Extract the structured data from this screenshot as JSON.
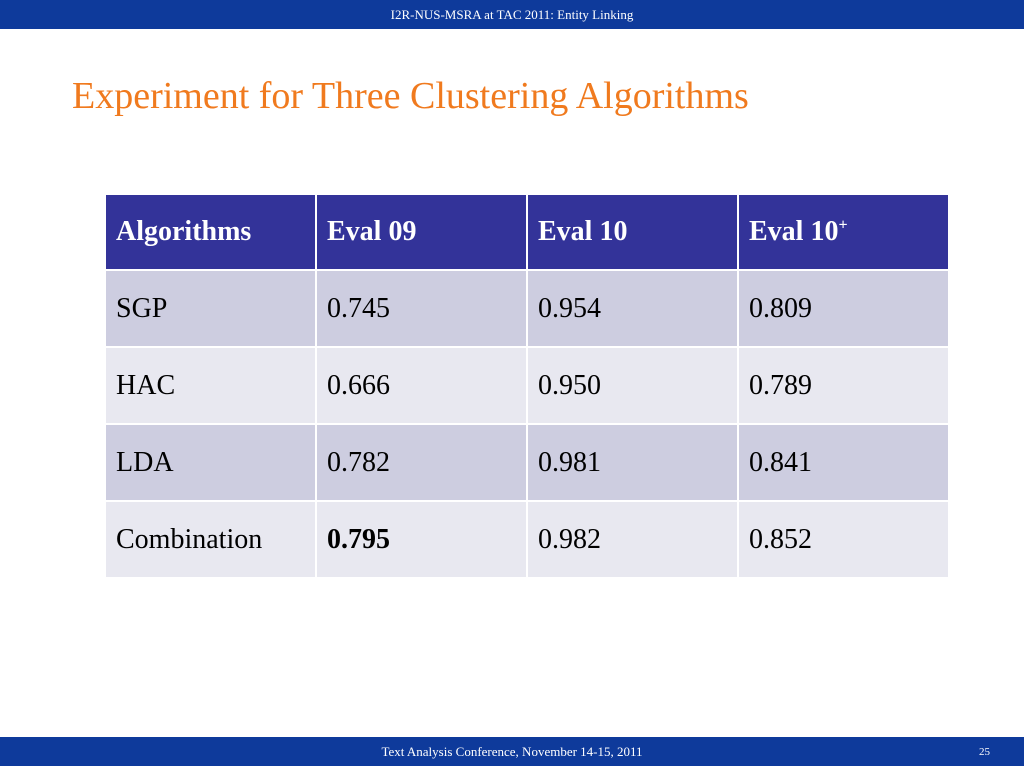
{
  "header": {
    "text": "I2R-NUS-MSRA at TAC 2011: Entity Linking"
  },
  "slide": {
    "title": "Experiment for Three Clustering Algorithms"
  },
  "table": {
    "columns": [
      "Algorithms",
      "Eval 09",
      "Eval 10",
      "Eval 10"
    ],
    "column_superscripts": [
      "",
      "",
      "",
      "+"
    ],
    "rows": [
      [
        "SGP",
        "0.745",
        "0.954",
        "0.809"
      ],
      [
        "HAC",
        "0.666",
        "0.950",
        "0.789"
      ],
      [
        "LDA",
        "0.782",
        "0.981",
        "0.841"
      ],
      [
        "Combination",
        "0.795",
        "0.982",
        "0.852"
      ]
    ],
    "bold_cells": [
      [
        3,
        1
      ]
    ]
  },
  "footer": {
    "text": "Text Analysis Conference, November 14-15, 2011",
    "page_number": "25"
  },
  "colors": {
    "bar": "#0e3a9b",
    "title": "#f07a1e",
    "table_header": "#333399",
    "row_odd": "#cdcde0",
    "row_even": "#e8e8f0"
  }
}
